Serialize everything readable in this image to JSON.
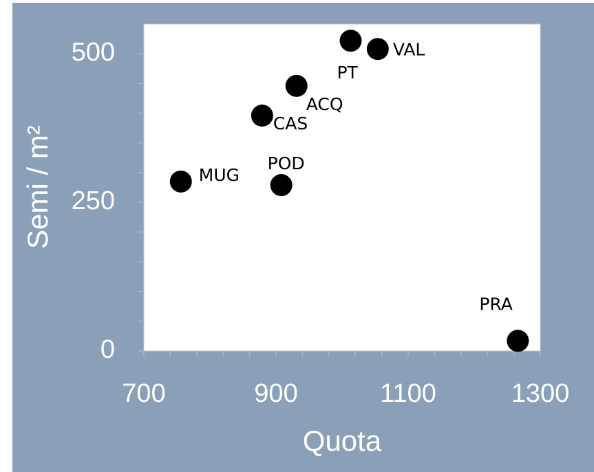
{
  "chart_data": {
    "type": "scatter",
    "xlabel": "Quota",
    "ylabel": "Semi / m²",
    "series": [
      {
        "color": "#000000",
        "labels": [
          "PT",
          "VAL",
          "ACQ",
          "CAS",
          "MUG",
          "POD",
          "PRA"
        ],
        "x": [
          1013,
          1054,
          931,
          879,
          756,
          908,
          1266
        ],
        "values": [
          522,
          508,
          446,
          396,
          285,
          279,
          17
        ]
      }
    ],
    "xlim": [
      700,
      1300
    ],
    "xticks": [
      700,
      900,
      1100,
      1300
    ],
    "xminorticks": [
      740,
      780,
      820,
      860,
      940,
      980,
      1020,
      1060,
      1140,
      1180,
      1220,
      1260
    ],
    "ylim": [
      0,
      550
    ],
    "yticks": [
      0,
      250,
      500
    ],
    "yminorticks": [
      50,
      100,
      150,
      200,
      300,
      350,
      400,
      450
    ]
  }
}
